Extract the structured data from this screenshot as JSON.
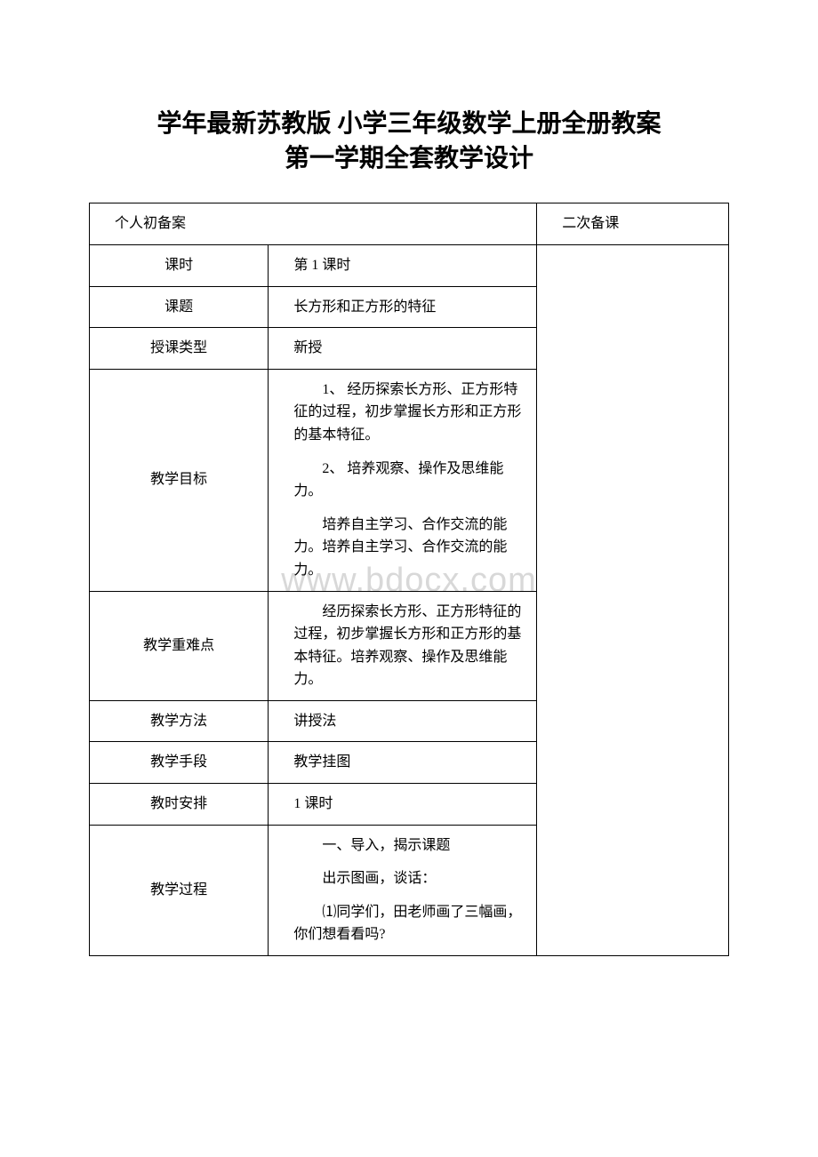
{
  "title": {
    "line1": "学年最新苏教版 小学三年级数学上册全册教案",
    "line2": "第一学期全套教学设计"
  },
  "watermark": "www.bdocx.com",
  "header": {
    "col1": "个人初备案",
    "col3": "二次备课"
  },
  "rows": {
    "period": {
      "label": "课时",
      "value": "第 1 课时"
    },
    "topic": {
      "label": "课题",
      "value": "长方形和正方形的特征"
    },
    "lessonType": {
      "label": "授课类型",
      "value": "新授"
    },
    "objectives": {
      "label": "教学目标",
      "p1": "1、 经历探索长方形、正方形特征的过程，初步掌握长方形和正方形的基本特征。",
      "p2": "2、 培养观察、操作及思维能力。",
      "p3": "培养自主学习、合作交流的能力。培养自主学习、合作交流的能力。"
    },
    "keyPoints": {
      "label": "教学重难点",
      "value": "经历探索长方形、正方形特征的过程，初步掌握长方形和正方形的基本特征。培养观察、操作及思维能力。"
    },
    "method": {
      "label": "教学方法",
      "value": "讲授法"
    },
    "means": {
      "label": "教学手段",
      "value": "教学挂图"
    },
    "schedule": {
      "label": "教时安排",
      "value": "1 课时"
    },
    "process": {
      "label": "教学过程",
      "p1": "一、导入，揭示课题",
      "p2": "出示图画，谈话：",
      "p3": "⑴同学们，田老师画了三幅画，你们想看看吗?"
    }
  }
}
